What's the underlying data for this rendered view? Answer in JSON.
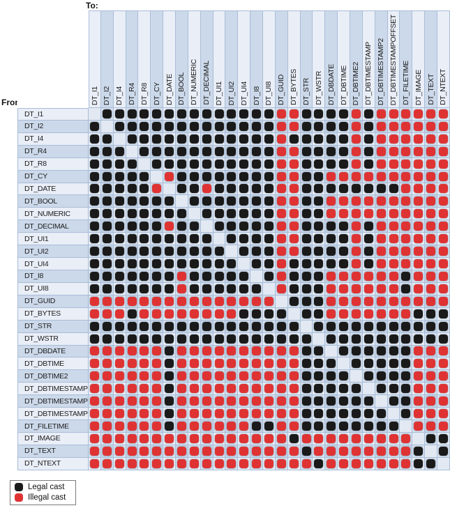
{
  "labels": {
    "to": "To:",
    "from": "From:"
  },
  "legend": [
    {
      "label": "Legal cast",
      "color": "#1a1a1a"
    },
    {
      "label": "Illegal cast",
      "color": "#df3333"
    }
  ],
  "colors": {
    "legal": "#1a1a1a",
    "illegal": "#df3333"
  },
  "chart_data": {
    "type": "heatmap",
    "x_axis_label": "To:",
    "y_axis_label": "From:",
    "legend": {
      "L": "Legal cast",
      "X": "Illegal cast",
      "-": "blank (same type)"
    },
    "columns": [
      "DT_I1",
      "DT_I2",
      "DT_I4",
      "DT_R4",
      "DT_R8",
      "DT_CY",
      "DT_DATE",
      "DT_BOOL",
      "DT_NUMERIC",
      "DT_DECIMAL",
      "DT_UI1",
      "DT_UI2",
      "DT_UI4",
      "DT_I8",
      "DT_UI8",
      "DT_GUID",
      "DT_BYTES",
      "DT_STR",
      "DT_WSTR",
      "DT_DBDATE",
      "DT_DBTIME",
      "DT_DBTIME2",
      "DT_DBTIMESTAMP",
      "DT_DBTIMESTAMP2",
      "DT_DBTIMESTAMPOFFSET",
      "DT_FILETIME",
      "DT_IMAGE",
      "DT_TEXT",
      "DT_NTEXT"
    ],
    "rows": [
      "DT_I1",
      "DT_I2",
      "DT_I4",
      "DT_R4",
      "DT_R8",
      "DT_CY",
      "DT_DATE",
      "DT_BOOL",
      "DT_NUMERIC",
      "DT_DECIMAL",
      "DT_UI1",
      "DT_UI2",
      "DT_UI4",
      "DT_I8",
      "DT_UI8",
      "DT_GUID",
      "DT_BYTES",
      "DT_STR",
      "DT_WSTR",
      "DT_DBDATE",
      "DT_DBTIME",
      "DT_DBTIME2",
      "DT_DBTIMESTAMP",
      "DT_DBTIMESTAMP2",
      "DT_DBTIMESTAMPOFFSET",
      "DT_FILETIME",
      "DT_IMAGE",
      "DT_TEXT",
      "DT_NTEXT"
    ],
    "matrix": [
      "-LLLLLLLLLLLLLLXXLLLLXLXXXXXX",
      "L-LLLLLLLLLLLLLXXLLLLXLXXXXXX",
      "LL-LLLLLLLLLLLLXLLLLLXLXXXXXX",
      "LLL-LLLLLLLLLLLXXLLLLXLXXXXXX",
      "LLLL-LLLLLLLLLLXXLLLLXLXXXXXX",
      "LLLLL-XLLLLLLLLXXLLXXXXXXXXXX",
      "LLLLLX-LLXLLLLLXXLLLLLLLLXXXX",
      "LLLLLLL-LLLLLLLXXLLXXXXXXXXXX",
      "LLLLLLLL-LLLLLLXXLLXXXXXXXXXX",
      "LLLLLLXLL-LLLLLXXLLLLXLXXXXXX",
      "LLLLLLLLLL-LLLLXXLLLLXLXXXXXX",
      "LLLLLLLLLLL-LLLXXLLLLXLXXXXXX",
      "LLLLLLLLLLLL-LLXLLLLLXLXXXXXX",
      "LLLLLLLXLLLLL-LXLLLXXXXXXLXXX",
      "LLLLLLLXLLLLLL-XLLLXXXXXXLXXX",
      "XXXXXXXXXXXXXXX-LLLXXXXXXXXXX",
      "XXXLXXXXXXXXLLLL-LLXXXXXXXLLL",
      "LLLLLLLLLLLLLLLLL-LLLLLLLLLLL",
      "LLLLLLLLLLLLLLLLLL-LLLLLLLLLL",
      "XXXXXXLXXXXXXXXXXLL-LLLLLLXXX",
      "XXXXXXLXXXXXXXXXXLLL-LLLLLXXX",
      "XXXXXXLXXXXXXXXXXLLLL-LLLLXXX",
      "XXXXXXLXXXXXXXXXXLLLLL-LLLXXX",
      "XXXXXXLXXXXXXXXXXLLLLLL-LLXXX",
      "XXXXXXLXXXXXXXXXXLLLLLLL-LXXX",
      "XXXXXXLXXXXXXLLXXLLLLLLLL-XXX",
      "XXXXXXXXXXXXXXXXLXXXXXXXXX-LL",
      "XXXXXXXXXXXXXXXXXLXXXXXXXXL-L",
      "XXXXXXXXXXXXXXXXXXLXXXXXXXLL-"
    ]
  }
}
